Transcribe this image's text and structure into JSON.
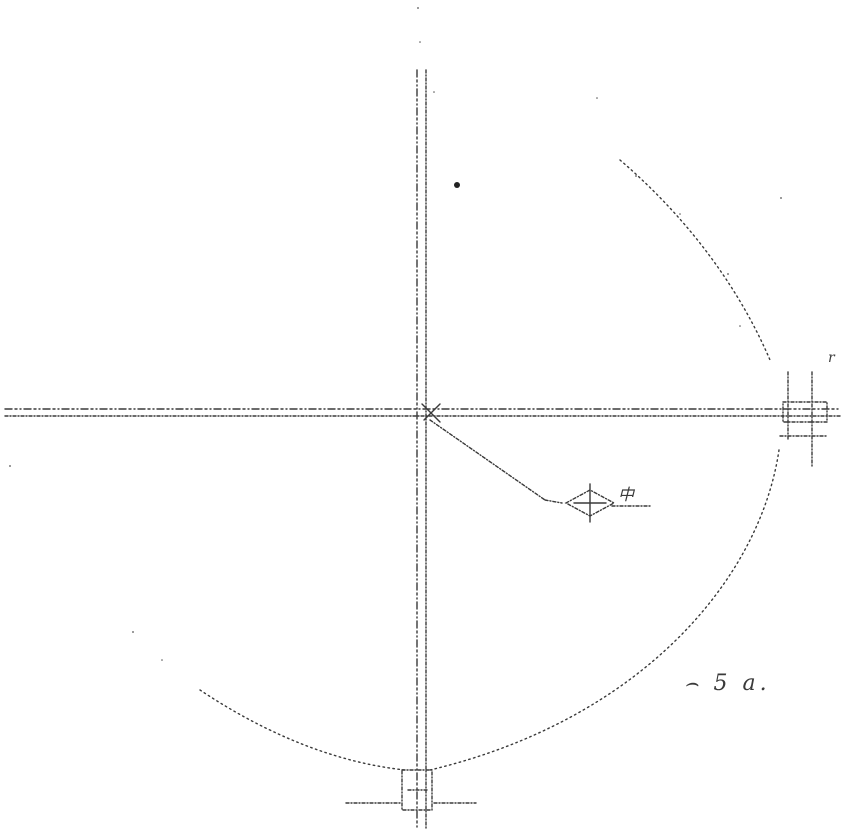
{
  "drawing": {
    "label_arc": "⌢ 5 a.",
    "label_center": "中",
    "label_mark": "r"
  },
  "colors": {
    "ink": "#3a3a3a",
    "paper": "#ffffff"
  }
}
